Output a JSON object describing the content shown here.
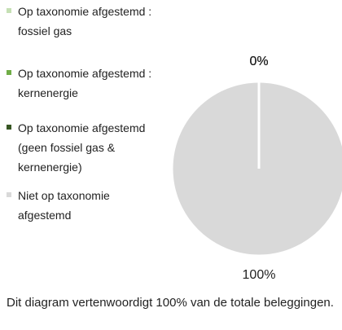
{
  "chart_data": {
    "type": "pie",
    "categories": [
      "Op taxonomie afgestemd : fossiel gas",
      "Op taxonomie afgestemd : kernenergie",
      "Op taxonomie afgestemd (geen fossiel gas & kernenergie)",
      "Niet op taxonomie afgestemd"
    ],
    "values": [
      0,
      0,
      0,
      100
    ],
    "value_labels": [
      "0%",
      "0%",
      "0%",
      "100%"
    ],
    "colors": [
      "#c5e0b4",
      "#70ad47",
      "#375623",
      "#d9d9d9"
    ],
    "caption": "Dit diagram vertenwoordigt 100% van de totale beleggingen."
  }
}
